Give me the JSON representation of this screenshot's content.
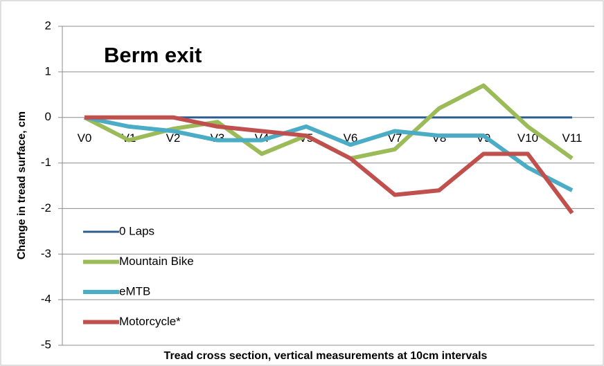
{
  "chart_data": {
    "type": "line",
    "title": "Berm exit",
    "x_label": "Tread cross section, vertical measurements at 10cm intervals",
    "y_label": "Change in tread surface, cm",
    "categories": [
      "V0",
      "V1",
      "V2",
      "V3",
      "V4",
      "V5",
      "V6",
      "V7",
      "V8",
      "V9",
      "V10",
      "V11"
    ],
    "series": [
      {
        "name": "0 Laps",
        "color": "#2c5d8f",
        "values": [
          0,
          0,
          0,
          0,
          0,
          0,
          0,
          0,
          0,
          0,
          0,
          0
        ]
      },
      {
        "name": "Mountain Bike",
        "color": "#9bbb59",
        "values": [
          0,
          -0.5,
          -0.25,
          -0.1,
          -0.8,
          -0.4,
          -0.9,
          -0.7,
          0.2,
          0.7,
          -0.2,
          -0.9
        ]
      },
      {
        "name": "eMTB",
        "color": "#4bacc6",
        "values": [
          0,
          -0.2,
          -0.3,
          -0.5,
          -0.5,
          -0.2,
          -0.6,
          -0.3,
          -0.4,
          -0.4,
          -1.1,
          -1.6
        ]
      },
      {
        "name": "Motorcycle*",
        "color": "#c0504d",
        "values": [
          0,
          0,
          0,
          -0.2,
          -0.3,
          -0.4,
          -0.9,
          -1.7,
          -1.6,
          -0.8,
          -0.8,
          -2.1
        ]
      }
    ],
    "ylim": [
      -5,
      2
    ],
    "yticks": [
      -5,
      -4,
      -3,
      -2,
      -1,
      0,
      1,
      2
    ],
    "grid": true,
    "legend": "left"
  }
}
